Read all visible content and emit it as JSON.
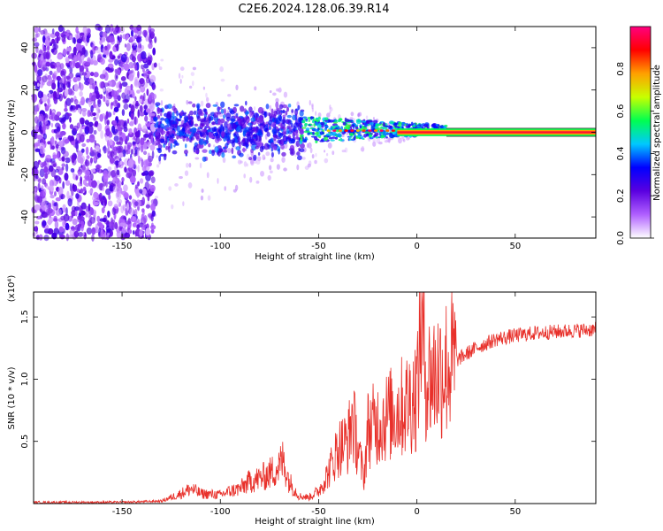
{
  "title": "C2E6.2024.128.06.39.R14",
  "chart_data": [
    {
      "type": "heatmap",
      "xlabel": "Height of straight line (km)",
      "ylabel": "Frequency (Hz)",
      "xlim": [
        -195,
        91
      ],
      "ylim": [
        -50,
        50
      ],
      "xticks": [
        -150,
        -100,
        -50,
        0,
        50
      ],
      "yticks": [
        -40,
        -20,
        0,
        20,
        40
      ],
      "grid": false,
      "colorbar": {
        "label": "Normalized spectral amplitude",
        "range": [
          0,
          1
        ],
        "ticks": [
          0.0,
          0.2,
          0.4,
          0.6,
          0.8
        ],
        "colormap": [
          "#ffffff",
          "#b060ff",
          "#5a00e0",
          "#0000ff",
          "#00c8ff",
          "#00ff50",
          "#c8ff00",
          "#ffa000",
          "#ff0000",
          "#ff0080"
        ]
      },
      "regions": [
        {
          "x": [
            -195,
            -133
          ],
          "freq_spread": [
            -50,
            50
          ],
          "amplitude": 0.15
        },
        {
          "x": [
            -133,
            -60
          ],
          "freq_spread": [
            -15,
            20
          ],
          "amplitude": 0.25
        },
        {
          "x": [
            -60,
            15
          ],
          "freq_spread": [
            -3,
            5
          ],
          "amplitude": 0.5
        },
        {
          "x": [
            15,
            91
          ],
          "freq_center": 0,
          "amplitude": 1.0
        }
      ]
    },
    {
      "type": "line",
      "xlabel": "Height of straight line (km)",
      "ylabel": "SNR (10 * v/v)",
      "yscale_label": "(x10⁴)",
      "xlim": [
        -195,
        91
      ],
      "ylim": [
        0,
        1.7
      ],
      "xticks": [
        -150,
        -100,
        -50,
        0,
        50
      ],
      "yticks": [
        0.5,
        1.0,
        1.5
      ],
      "grid": false,
      "series": [
        {
          "color": "#e8302a",
          "x": [
            -195,
            -150,
            -130,
            -120,
            -115,
            -110,
            -100,
            -95,
            -90,
            -85,
            -80,
            -75,
            -70,
            -68,
            -65,
            -60,
            -55,
            -50,
            -45,
            -40,
            -35,
            -33,
            -30,
            -27,
            -25,
            -20,
            -15,
            -10,
            -5,
            0,
            2,
            5,
            10,
            15,
            20,
            30,
            40,
            50,
            60,
            70,
            80,
            91
          ],
          "y": [
            0.01,
            0.01,
            0.02,
            0.08,
            0.12,
            0.08,
            0.07,
            0.1,
            0.12,
            0.18,
            0.2,
            0.24,
            0.3,
            0.35,
            0.18,
            0.06,
            0.05,
            0.1,
            0.25,
            0.45,
            0.5,
            0.7,
            0.45,
            0.2,
            0.6,
            0.65,
            0.7,
            0.75,
            0.8,
            0.9,
            1.5,
            1.0,
            1.05,
            1.1,
            1.15,
            1.25,
            1.32,
            1.35,
            1.37,
            1.38,
            1.39,
            1.4
          ]
        }
      ]
    }
  ]
}
